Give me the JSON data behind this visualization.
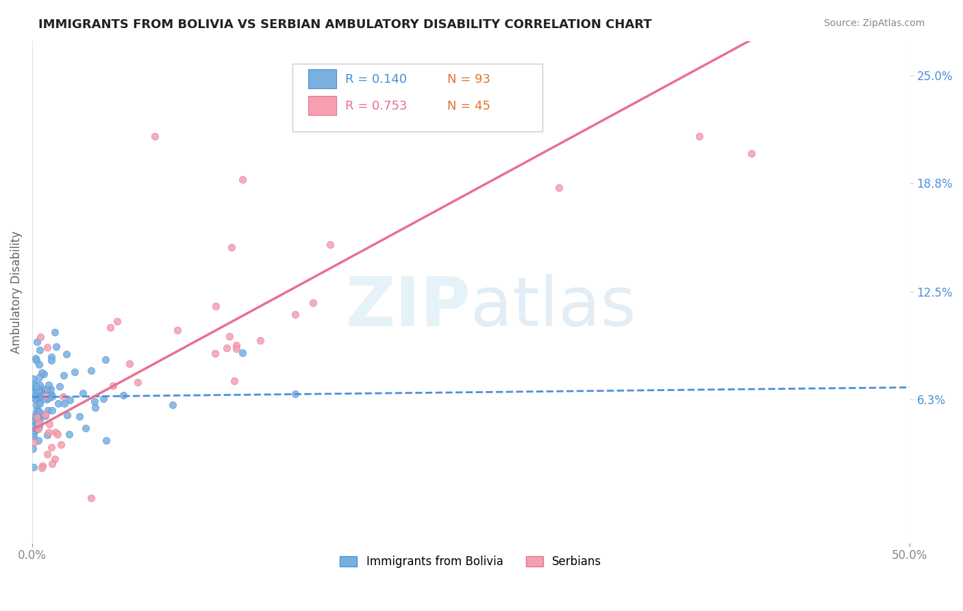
{
  "title": "IMMIGRANTS FROM BOLIVIA VS SERBIAN AMBULATORY DISABILITY CORRELATION CHART",
  "source": "Source: ZipAtlas.com",
  "ylabel_label": "Ambulatory Disability",
  "xlim": [
    0.0,
    0.5
  ],
  "ylim": [
    -0.02,
    0.27
  ],
  "ytick_labels_right": [
    "6.3%",
    "12.5%",
    "18.8%",
    "25.0%"
  ],
  "ytick_vals_right": [
    0.063,
    0.125,
    0.188,
    0.25
  ],
  "legend_r1": "R = 0.140",
  "legend_n1": "N = 93",
  "legend_r2": "R = 0.753",
  "legend_n2": "N = 45",
  "bolivia_color": "#7ab0e0",
  "serbia_color": "#f4a0b0",
  "trendline_bolivia_color": "#4a90d9",
  "trendline_serbia_color": "#e87090",
  "background_color": "#ffffff",
  "grid_color": "#e0e0e0"
}
